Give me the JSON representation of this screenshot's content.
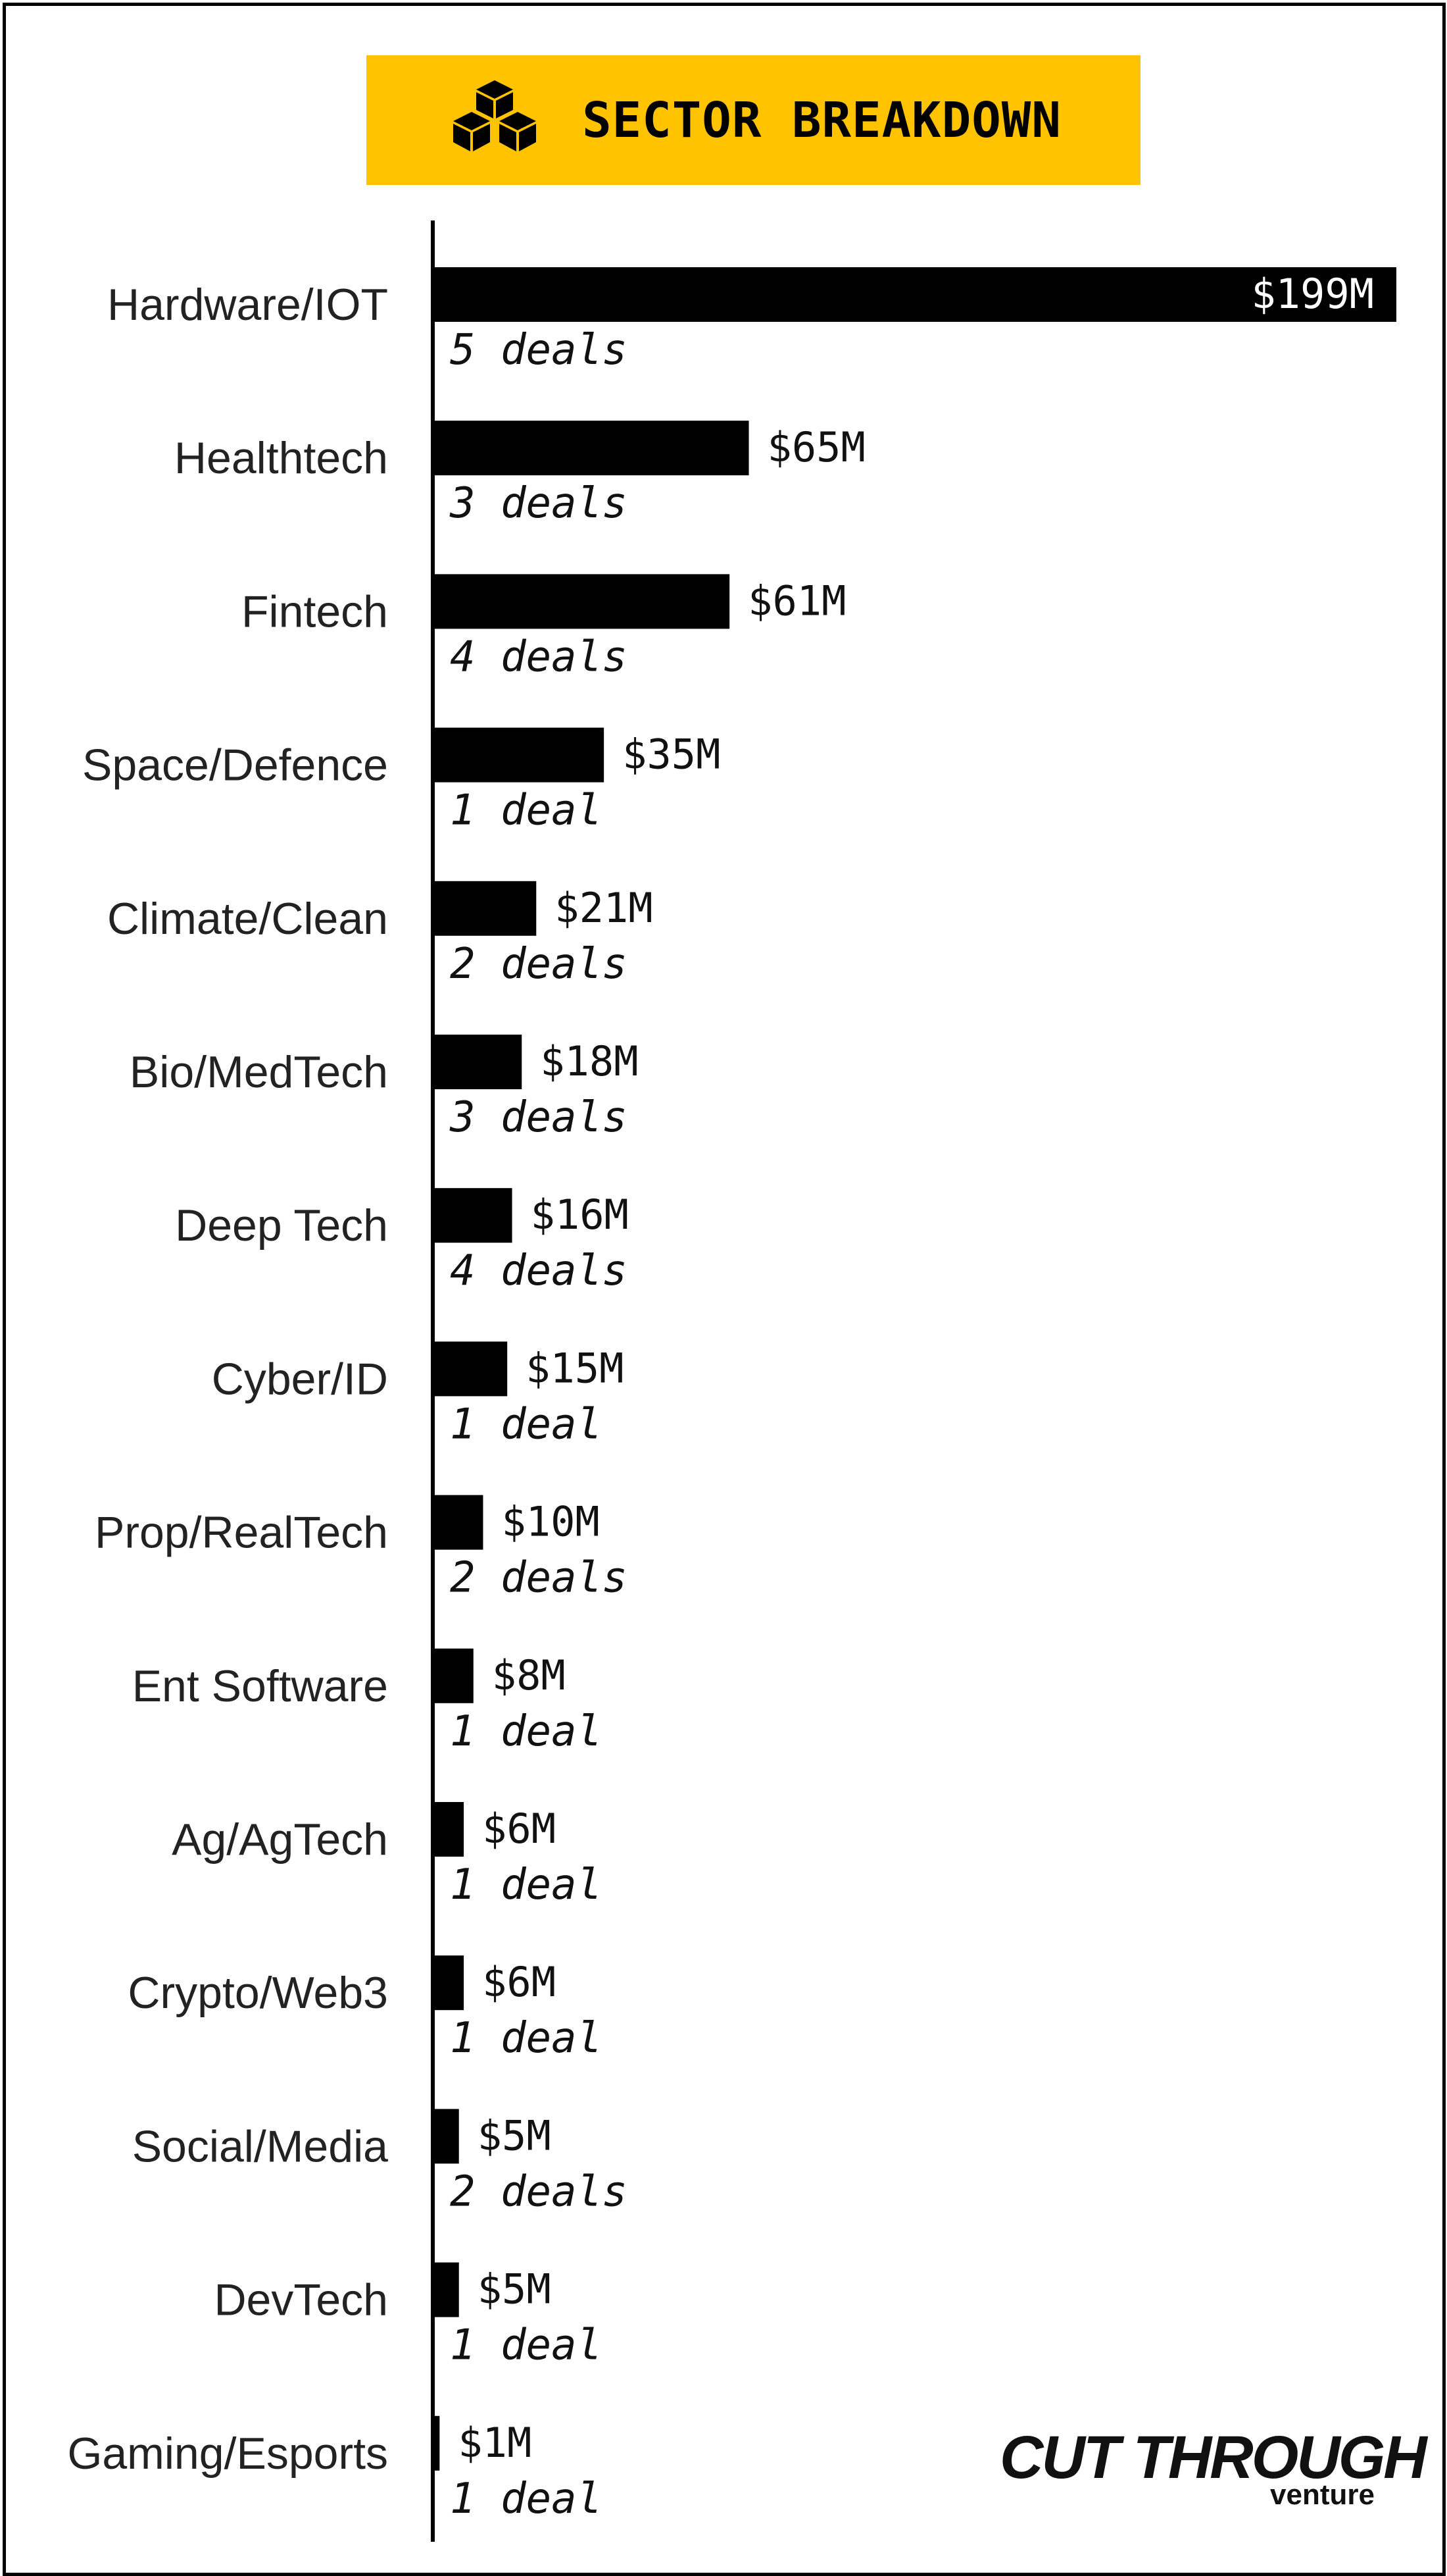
{
  "title": {
    "text": "SECTOR BREAKDOWN",
    "icon": "cubes-icon"
  },
  "colors": {
    "accent": "#ffc300",
    "bar": "#000000",
    "text": "#222222"
  },
  "logo": {
    "main": "CUT THROUGH",
    "sub": "venture"
  },
  "chart_data": {
    "type": "bar",
    "orientation": "horizontal",
    "title": "SECTOR BREAKDOWN",
    "xlabel": "",
    "ylabel": "",
    "grid": false,
    "xlim": [
      0,
      199
    ],
    "categories": [
      "Hardware/IOT",
      "Healthtech",
      "Fintech",
      "Space/Defence",
      "Climate/Clean",
      "Bio/MedTech",
      "Deep Tech",
      "Cyber/ID",
      "Prop/RealTech",
      "Ent Software",
      "Ag/AgTech",
      "Crypto/Web3",
      "Social/Media",
      "DevTech",
      "Gaming/Esports"
    ],
    "values": [
      199,
      65,
      61,
      35,
      21,
      18,
      16,
      15,
      10,
      8,
      6,
      6,
      5,
      5,
      1
    ],
    "value_labels": [
      "$199M",
      "$65M",
      "$61M",
      "$35M",
      "$21M",
      "$18M",
      "$16M",
      "$15M",
      "$10M",
      "$8M",
      "$6M",
      "$6M",
      "$5M",
      "$5M",
      "$1M"
    ],
    "deals": [
      5,
      3,
      4,
      1,
      2,
      3,
      4,
      1,
      2,
      1,
      1,
      1,
      2,
      1,
      1
    ],
    "deal_labels": [
      "5 deals",
      "3 deals",
      "4 deals",
      "1 deal",
      "2 deals",
      "3 deals",
      "4 deals",
      "1 deal",
      "2 deals",
      "1 deal",
      "1 deal",
      "1 deal",
      "2 deals",
      "1 deal",
      "1 deal"
    ]
  }
}
